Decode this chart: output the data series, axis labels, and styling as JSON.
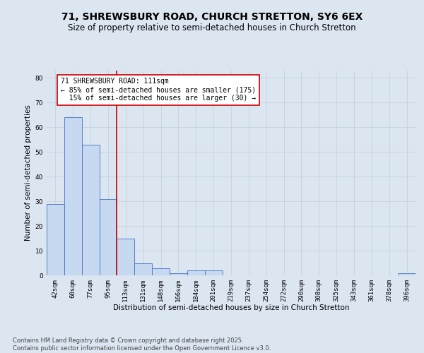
{
  "title": "71, SHREWSBURY ROAD, CHURCH STRETTON, SY6 6EX",
  "subtitle": "Size of property relative to semi-detached houses in Church Stretton",
  "xlabel": "Distribution of semi-detached houses by size in Church Stretton",
  "ylabel": "Number of semi-detached properties",
  "categories": [
    "42sqm",
    "60sqm",
    "77sqm",
    "95sqm",
    "113sqm",
    "131sqm",
    "148sqm",
    "166sqm",
    "184sqm",
    "201sqm",
    "219sqm",
    "237sqm",
    "254sqm",
    "272sqm",
    "290sqm",
    "308sqm",
    "325sqm",
    "343sqm",
    "361sqm",
    "378sqm",
    "396sqm"
  ],
  "values": [
    29,
    64,
    53,
    31,
    15,
    5,
    3,
    1,
    2,
    2,
    0,
    0,
    0,
    0,
    0,
    0,
    0,
    0,
    0,
    0,
    1
  ],
  "bar_color": "#c6d9f1",
  "bar_edge_color": "#4472c4",
  "subject_line_color": "#cc0000",
  "annotation_text": "71 SHREWSBURY ROAD: 111sqm\n← 85% of semi-detached houses are smaller (175)\n  15% of semi-detached houses are larger (30) →",
  "annotation_box_color": "#ffffff",
  "annotation_box_edge": "#cc0000",
  "ylim": [
    0,
    83
  ],
  "yticks": [
    0,
    10,
    20,
    30,
    40,
    50,
    60,
    70,
    80
  ],
  "grid_color": "#c8d4e3",
  "background_color": "#dce6f1",
  "footer_text": "Contains HM Land Registry data © Crown copyright and database right 2025.\nContains public sector information licensed under the Open Government Licence v3.0.",
  "title_fontsize": 10,
  "subtitle_fontsize": 8.5,
  "axis_label_fontsize": 7.5,
  "tick_fontsize": 6.5,
  "annotation_fontsize": 7,
  "footer_fontsize": 6
}
